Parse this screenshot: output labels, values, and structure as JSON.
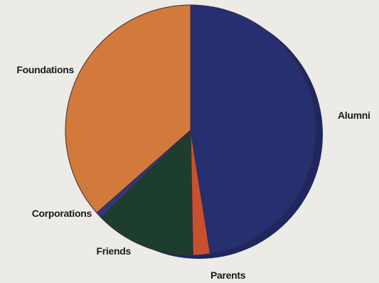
{
  "chart_data": {
    "type": "pie",
    "title": "",
    "slices": [
      {
        "label": "Alumni",
        "value": 47.5,
        "color": "#262f6f"
      },
      {
        "label": "Parents",
        "value": 2.2,
        "color": "#c9502e"
      },
      {
        "label": "Friends",
        "value": 13.0,
        "color": "#1d3d2e"
      },
      {
        "label": "Corporations",
        "value": 0.8,
        "color": "#2c3a78"
      },
      {
        "label": "Foundations",
        "value": 36.5,
        "color": "#d27a3b"
      }
    ]
  }
}
